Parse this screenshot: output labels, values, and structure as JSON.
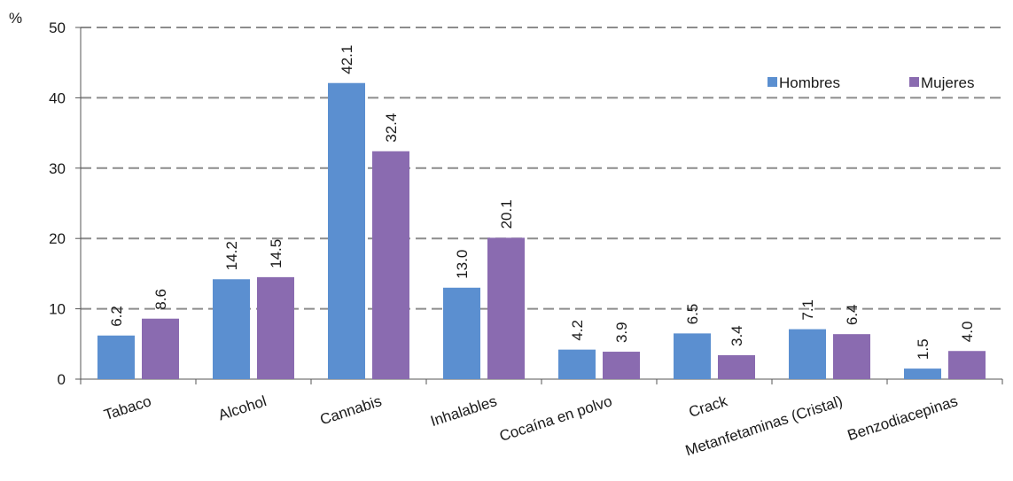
{
  "chart_data": {
    "type": "bar",
    "y_unit_label": "%",
    "categories": [
      "Tabaco",
      "Alcohol",
      "Cannabis",
      "Inhalables",
      "Cocaína en polvo",
      "Crack",
      "Metanfetaminas (Cristal)",
      "Benzodiacepinas"
    ],
    "series": [
      {
        "name": "Hombres",
        "color": "#5b8fd0",
        "values": [
          6.2,
          14.2,
          42.1,
          13.0,
          4.2,
          6.5,
          7.1,
          1.5
        ],
        "labels": [
          "6.2",
          "14.2",
          "42.1",
          "13.0",
          "4.2",
          "6.5",
          "7.1",
          "1.5"
        ]
      },
      {
        "name": "Mujeres",
        "color": "#8a6bb0",
        "values": [
          8.6,
          14.5,
          32.4,
          20.1,
          3.9,
          3.4,
          6.4,
          4.0
        ],
        "labels": [
          "8.6",
          "14.5",
          "32.4",
          "20.1",
          "3.9",
          "3.4",
          "6.4",
          "4.0"
        ]
      }
    ],
    "ylim": [
      0,
      50
    ],
    "yticks": [
      0,
      10,
      20,
      30,
      40,
      50
    ],
    "grid": true,
    "grid_style": "dashed",
    "legend_position": "top-right",
    "xlabel": "",
    "ylabel": "%"
  }
}
